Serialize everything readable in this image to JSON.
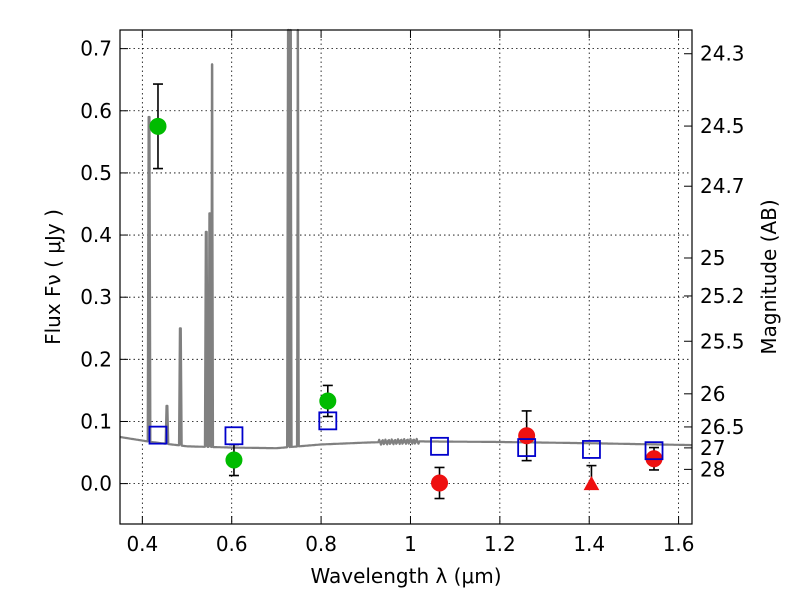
{
  "chart_data": {
    "type": "scatter",
    "xlabel": "Wavelength  λ (μm)",
    "ylabel": "Flux  Fν  ( μJy )",
    "ylabel_right": "Magnitude (AB)",
    "xlim": [
      0.35,
      1.63
    ],
    "ylim": [
      -0.065,
      0.73
    ],
    "grid": true,
    "x_ticks": [
      {
        "value": 0.4,
        "label": "0.4"
      },
      {
        "value": 0.6,
        "label": "0.6"
      },
      {
        "value": 0.8,
        "label": "0.8"
      },
      {
        "value": 1.0,
        "label": "1"
      },
      {
        "value": 1.2,
        "label": "1.2"
      },
      {
        "value": 1.4,
        "label": "1.4"
      },
      {
        "value": 1.6,
        "label": "1.6"
      }
    ],
    "y_ticks": [
      {
        "value": 0.0,
        "label": "0.0"
      },
      {
        "value": 0.1,
        "label": "0.1"
      },
      {
        "value": 0.2,
        "label": "0.2"
      },
      {
        "value": 0.3,
        "label": "0.3"
      },
      {
        "value": 0.4,
        "label": "0.4"
      },
      {
        "value": 0.5,
        "label": "0.5"
      },
      {
        "value": 0.6,
        "label": "0.6"
      },
      {
        "value": 0.7,
        "label": "0.7"
      }
    ],
    "right_ticks": [
      {
        "label": "24.3",
        "flux": 0.6918
      },
      {
        "label": "24.5",
        "flux": 0.5754
      },
      {
        "label": "24.7",
        "flux": 0.4786
      },
      {
        "label": "25",
        "flux": 0.3631
      },
      {
        "label": "25.2",
        "flux": 0.302
      },
      {
        "label": "25.5",
        "flux": 0.2291
      },
      {
        "label": "26",
        "flux": 0.1445
      },
      {
        "label": "26.5",
        "flux": 0.0912
      },
      {
        "label": "27",
        "flux": 0.0575
      },
      {
        "label": "28",
        "flux": 0.0229
      }
    ],
    "model_spectrum": {
      "color": "#808080",
      "continuum": [
        [
          0.35,
          0.075
        ],
        [
          0.42,
          0.067
        ],
        [
          0.5,
          0.06
        ],
        [
          0.6,
          0.058
        ],
        [
          0.7,
          0.057
        ],
        [
          0.8,
          0.063
        ],
        [
          0.9,
          0.066
        ],
        [
          1.0,
          0.068
        ],
        [
          1.2,
          0.067
        ],
        [
          1.4,
          0.065
        ],
        [
          1.63,
          0.062
        ]
      ],
      "lines": [
        {
          "x": 0.415,
          "peak": 0.59
        },
        {
          "x": 0.455,
          "peak": 0.125
        },
        {
          "x": 0.485,
          "peak": 0.25
        },
        {
          "x": 0.543,
          "peak": 0.405
        },
        {
          "x": 0.551,
          "peak": 0.435
        },
        {
          "x": 0.556,
          "peak": 0.675
        },
        {
          "x": 0.727,
          "peak": 0.73
        },
        {
          "x": 0.732,
          "peak": 0.73
        },
        {
          "x": 0.748,
          "peak": 0.73
        }
      ]
    },
    "series": [
      {
        "marker": "circle",
        "color": "#00bb00",
        "points": [
          {
            "x": 0.435,
            "y": 0.575,
            "err": 0.068
          },
          {
            "x": 0.605,
            "y": 0.038,
            "err": 0.025
          },
          {
            "x": 0.815,
            "y": 0.133,
            "err": 0.025
          }
        ]
      },
      {
        "marker": "circle",
        "color": "#ee1111",
        "points": [
          {
            "x": 1.065,
            "y": 0.001,
            "err": 0.025
          },
          {
            "x": 1.26,
            "y": 0.077,
            "err": 0.04
          },
          {
            "x": 1.545,
            "y": 0.04,
            "err": 0.018
          }
        ]
      },
      {
        "marker": "triangle",
        "color": "#ee1111",
        "points": [
          {
            "x": 1.405,
            "y": -0.001,
            "err_up": 0.03
          }
        ]
      },
      {
        "marker": "open-square",
        "color": "#0000cc",
        "points": [
          {
            "x": 0.435,
            "y": 0.078
          },
          {
            "x": 0.605,
            "y": 0.077
          },
          {
            "x": 0.815,
            "y": 0.101
          },
          {
            "x": 1.065,
            "y": 0.06
          },
          {
            "x": 1.26,
            "y": 0.058
          },
          {
            "x": 1.405,
            "y": 0.055
          },
          {
            "x": 1.545,
            "y": 0.053
          }
        ]
      }
    ]
  }
}
